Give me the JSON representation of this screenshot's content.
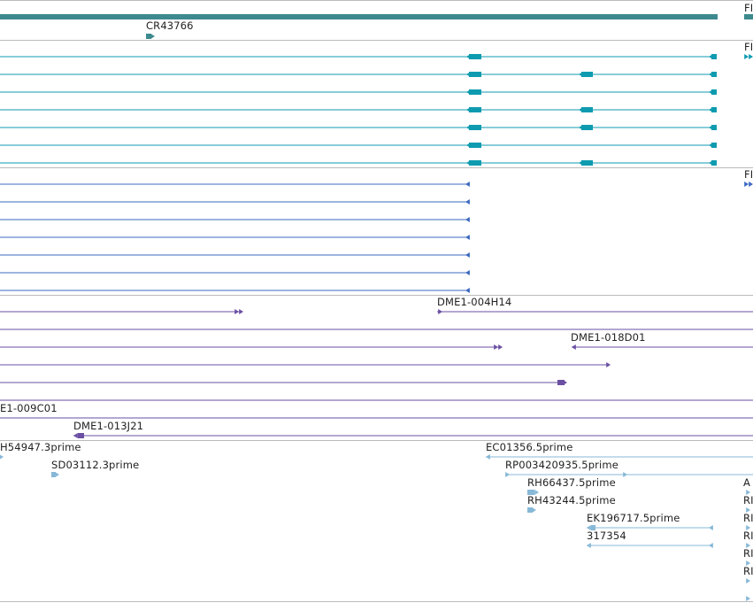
{
  "colors": {
    "ncrna": "#3d8a8e",
    "transcript": "#0e9bb0",
    "protein_coding": "#3b68c0",
    "bac": "#6a4fa3",
    "est": "#87b8d8",
    "separator": "#bbbbbb",
    "label_text": "#222222"
  },
  "tracks": {
    "gene_models_top": {
      "labels": [
        "CR43766",
        "FI"
      ]
    },
    "transcripts": {
      "labels": [
        "FI"
      ]
    },
    "protein_coding": {
      "labels": [
        "FI"
      ]
    },
    "bac_clones": {
      "labels": [
        "DME1-004H14",
        "DME1-018D01",
        "E1-009C01",
        "DME1-013J21"
      ]
    },
    "est_alignments": {
      "labels": [
        "H54947.3prime",
        "SD03112.3prime",
        "EC01356.5prime",
        "RP003420935.5prime",
        "RH66437.5prime",
        "RH43244.5prime",
        "EK196717.5prime",
        "317354",
        "A",
        "RI",
        "RI",
        "RI",
        "RI",
        "RI"
      ]
    }
  }
}
